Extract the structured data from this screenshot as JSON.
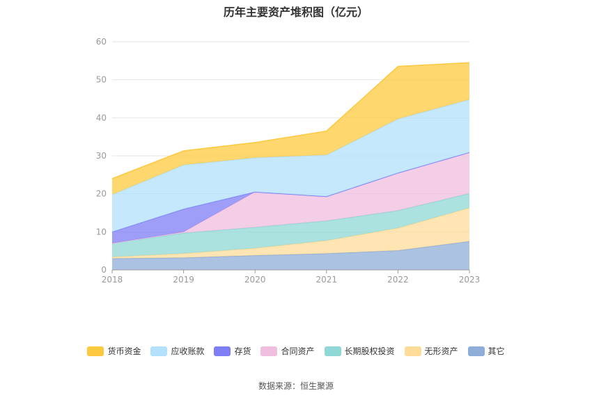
{
  "title": "历年主要资产堆积图（亿元）",
  "source": "数据来源：恒生聚源",
  "chart_data": {
    "type": "area",
    "stacked": true,
    "x": [
      "2018",
      "2019",
      "2020",
      "2021",
      "2022",
      "2023"
    ],
    "ylim": [
      0,
      60
    ],
    "yticks": [
      0,
      10,
      20,
      30,
      40,
      50,
      60
    ],
    "grid": true,
    "legend_position": "bottom",
    "series": [
      {
        "name": "其它",
        "color": "#8fadd9",
        "values": [
          3.0,
          3.2,
          3.8,
          4.3,
          5.1,
          7.5
        ]
      },
      {
        "name": "无形资产",
        "color": "#fddc9a",
        "values": [
          0.4,
          1.1,
          1.9,
          3.4,
          5.9,
          8.8
        ]
      },
      {
        "name": "长期股权投资",
        "color": "#8fd8d6",
        "values": [
          3.6,
          5.4,
          5.5,
          5.2,
          4.6,
          3.8
        ]
      },
      {
        "name": "合同资产",
        "color": "#f0bedf",
        "values": [
          0.0,
          0.3,
          9.3,
          6.4,
          9.9,
          10.8
        ]
      },
      {
        "name": "存货",
        "color": "#7e7ef5",
        "values": [
          3.0,
          6.0,
          0.0,
          0.0,
          0.0,
          0.0
        ]
      },
      {
        "name": "应收账款",
        "color": "#b3e0fb",
        "values": [
          9.8,
          11.6,
          9.0,
          10.9,
          14.2,
          13.9
        ]
      },
      {
        "name": "货币资金",
        "color": "#fdc93f",
        "values": [
          4.2,
          3.7,
          4.0,
          6.3,
          13.8,
          9.7
        ]
      }
    ]
  }
}
